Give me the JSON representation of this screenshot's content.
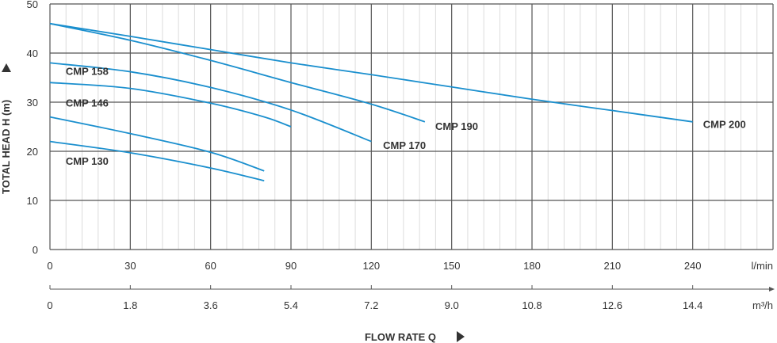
{
  "chart_data": {
    "type": "line",
    "xlabel": "FLOW RATE Q",
    "ylabel": "TOTAL HEAD H (m)",
    "xlim": [
      0,
      270
    ],
    "ylim": [
      0,
      50
    ],
    "grid": true,
    "x_ticks": [
      "0",
      "30",
      "60",
      "90",
      "120",
      "150",
      "180",
      "210",
      "240"
    ],
    "x_unit": "l/min",
    "x2_ticks": [
      "0",
      "1.8",
      "3.6",
      "5.4",
      "7.2",
      "9.0",
      "10.8",
      "12.6",
      "14.4"
    ],
    "x2_unit": "m³/h",
    "y_ticks": [
      "0",
      "10",
      "20",
      "30",
      "40",
      "50"
    ],
    "line_color": "#1a8fce",
    "series": [
      {
        "name": "CMP 200",
        "x": [
          0,
          30,
          60,
          90,
          120,
          150,
          180,
          210,
          240
        ],
        "y": [
          46,
          43.4,
          40.7,
          38,
          35.6,
          33.1,
          30.6,
          28.3,
          26
        ],
        "label_at": [
          243,
          25.6
        ]
      },
      {
        "name": "CMP 190",
        "x": [
          0,
          30,
          60,
          90,
          120,
          140
        ],
        "y": [
          46,
          42.6,
          38.5,
          34,
          29.6,
          26
        ],
        "label_at": [
          143,
          25.2
        ]
      },
      {
        "name": "CMP 170",
        "x": [
          0,
          30,
          60,
          90,
          120
        ],
        "y": [
          38,
          36.2,
          33,
          28.4,
          22
        ],
        "label_at": [
          123.5,
          21.3
        ]
      },
      {
        "name": "CMP 158",
        "x": [
          0,
          30,
          60,
          80,
          90
        ],
        "y": [
          34,
          32.8,
          29.8,
          27,
          25
        ],
        "label_at": [
          5,
          36.4
        ]
      },
      {
        "name": "CMP 146",
        "x": [
          0,
          30,
          60,
          80
        ],
        "y": [
          27,
          23.6,
          19.8,
          16
        ],
        "label_at": [
          5,
          29.9
        ]
      },
      {
        "name": "CMP 130",
        "x": [
          0,
          30,
          60,
          80
        ],
        "y": [
          22,
          19.7,
          16.6,
          14
        ],
        "label_at": [
          5,
          18.1
        ]
      }
    ]
  }
}
